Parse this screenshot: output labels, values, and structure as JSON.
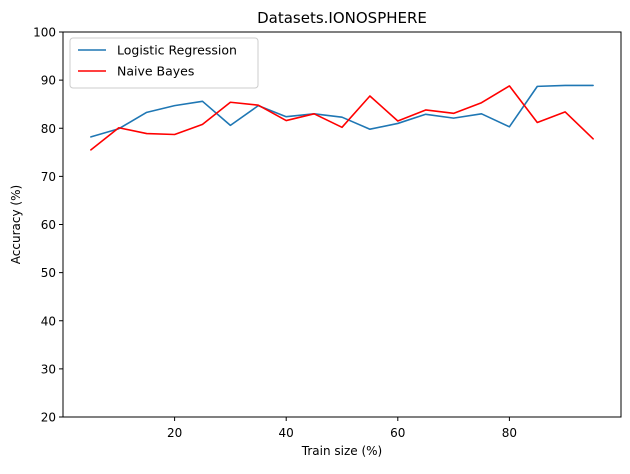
{
  "chart_data": {
    "type": "line",
    "title": "Datasets.IONOSPHERE",
    "xlabel": "Train size (%)",
    "ylabel": "Accuracy (%)",
    "xlim": [
      0,
      100
    ],
    "ylim": [
      20,
      100
    ],
    "xticks": [
      20,
      40,
      60,
      80
    ],
    "yticks": [
      20,
      30,
      40,
      50,
      60,
      70,
      80,
      90,
      100
    ],
    "grid": false,
    "legend_position": "top-left",
    "x": [
      5,
      10,
      15,
      20,
      25,
      30,
      35,
      40,
      45,
      50,
      55,
      60,
      65,
      70,
      75,
      80,
      85,
      90,
      95
    ],
    "series": [
      {
        "name": "Logistic Regression",
        "color": "#1f77b4",
        "values": [
          78.2,
          79.9,
          83.3,
          84.7,
          85.6,
          80.6,
          84.7,
          82.4,
          83.0,
          82.3,
          79.8,
          81.0,
          82.9,
          82.1,
          83.0,
          80.3,
          88.7,
          88.9,
          88.9
        ]
      },
      {
        "name": "Naive Bayes",
        "color": "#ff0000",
        "values": [
          75.5,
          80.1,
          78.9,
          78.7,
          80.8,
          85.4,
          84.8,
          81.6,
          83.0,
          80.2,
          86.7,
          81.5,
          83.8,
          83.1,
          85.3,
          88.8,
          81.2,
          83.4,
          77.8
        ]
      }
    ]
  }
}
